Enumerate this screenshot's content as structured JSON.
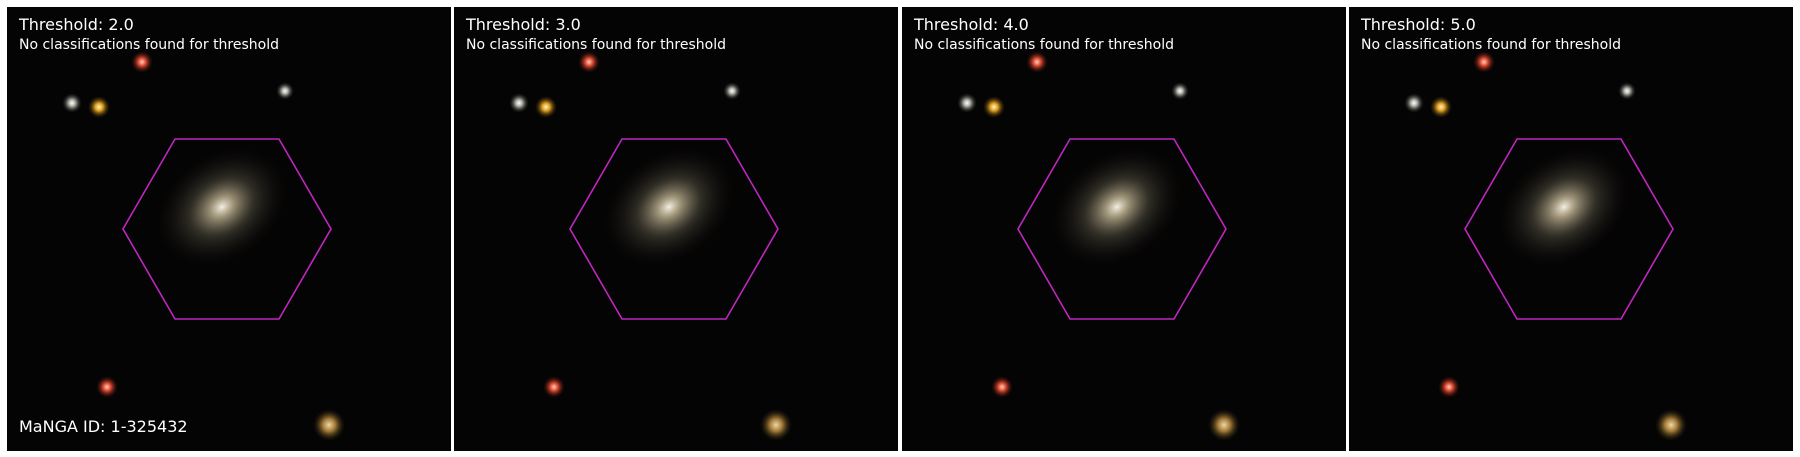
{
  "colors": {
    "background": "#ffffff",
    "sky": "#050404",
    "hexagon": "#c026c0",
    "text": "#ffffff"
  },
  "panels": [
    {
      "title": "Threshold: 2.0",
      "subtitle": "No classifications found for threshold"
    },
    {
      "title": "Threshold: 3.0",
      "subtitle": "No classifications found for threshold"
    },
    {
      "title": "Threshold: 4.0",
      "subtitle": "No classifications found for threshold"
    },
    {
      "title": "Threshold: 5.0",
      "subtitle": "No classifications found for threshold"
    }
  ],
  "footer": {
    "manga_id": "MaNGA ID: 1-325432"
  },
  "image_content": {
    "object": "spiral galaxy",
    "overlay": "hexagon-icon (IFU footprint outline)"
  }
}
